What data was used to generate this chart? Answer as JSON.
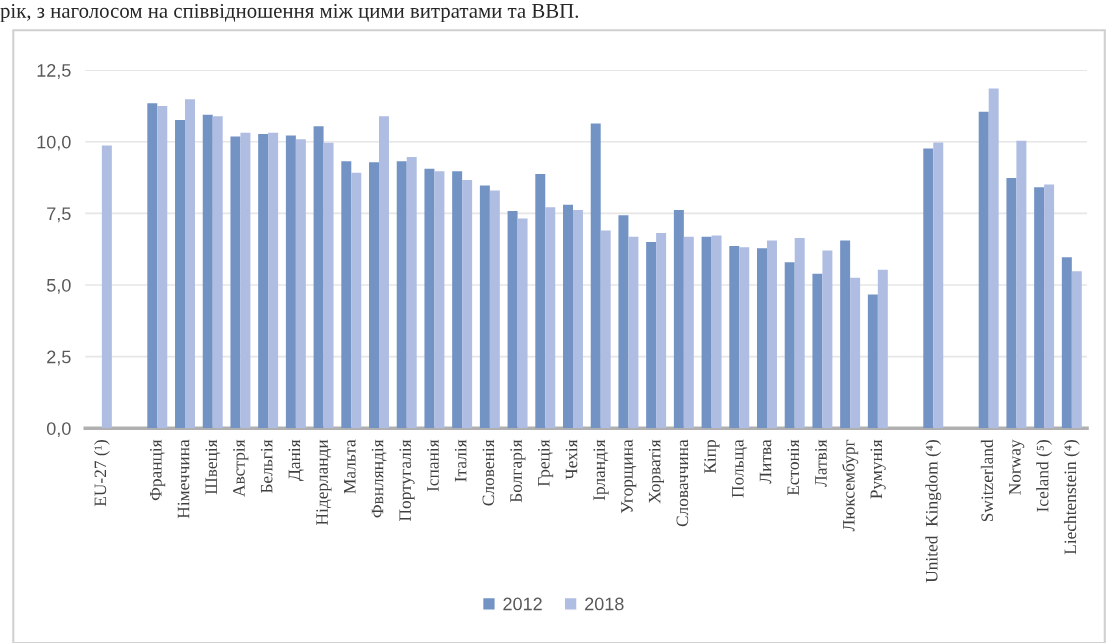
{
  "chart_data": {
    "type": "bar",
    "annotations": [
      "рік, з наголосом на співвідношення між цими витратами та ВВП."
    ],
    "categories": [
      "EU-27 (¹)",
      null,
      "Франція",
      "Німеччина",
      "Швеція",
      "Австрія",
      "Бельгія",
      "Данія",
      "Нідерланди",
      "Мальта",
      "Фвнляндія",
      "Португалія",
      "Іспанія",
      "Італія",
      "Словенія",
      "Болгарія",
      "Греція",
      "Чехія",
      "Ірландія",
      "Угорщина",
      "Хорватія",
      "Словаччина",
      "Кіпр",
      "Польща",
      "Литва",
      "Естонія",
      "Латвія",
      "Люксембург",
      "Румунія",
      null,
      "United  Kingdom (⁴)",
      null,
      "Switzerland",
      "Norway",
      "Iceland (⁵)",
      "Liechtenstein (⁴)"
    ],
    "series": [
      {
        "name": "2012",
        "color": "#7293c4",
        "values": [
          null,
          null,
          11.34,
          10.76,
          10.94,
          10.18,
          10.27,
          10.22,
          10.54,
          9.32,
          9.28,
          9.32,
          9.06,
          8.97,
          8.47,
          7.58,
          8.87,
          7.8,
          10.64,
          7.43,
          6.5,
          7.62,
          6.68,
          6.36,
          6.28,
          5.79,
          5.39,
          6.55,
          4.67,
          null,
          9.76,
          null,
          11.05,
          8.73,
          8.41,
          5.97
        ]
      },
      {
        "name": "2018",
        "color": "#afbde2",
        "values": [
          9.87,
          null,
          11.25,
          11.48,
          10.89,
          10.31,
          10.31,
          10.09,
          9.96,
          8.92,
          10.89,
          9.47,
          8.97,
          8.66,
          8.3,
          7.32,
          7.71,
          7.62,
          6.9,
          6.68,
          6.81,
          6.68,
          6.73,
          6.32,
          6.55,
          6.64,
          6.2,
          5.25,
          5.53,
          null,
          9.97,
          null,
          11.86,
          10.03,
          8.51,
          5.48
        ]
      }
    ],
    "ylim": [
      0,
      12.5
    ],
    "yticks": [
      {
        "value": 0,
        "label": "0,0"
      },
      {
        "value": 2.5,
        "label": "2,5"
      },
      {
        "value": 5,
        "label": "5,0"
      },
      {
        "value": 7.5,
        "label": "7,5"
      },
      {
        "value": 10,
        "label": "10,0"
      },
      {
        "value": 12.5,
        "label": "12,5"
      }
    ],
    "grid": "y",
    "legend": "bottom"
  }
}
